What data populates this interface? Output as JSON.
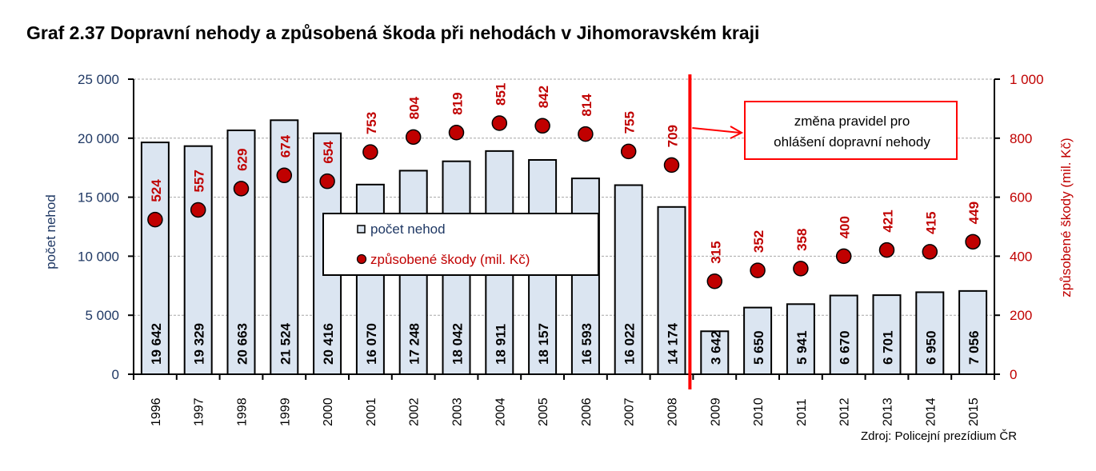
{
  "title": "Graf 2.37 Dopravní nehody a způsobená škoda při nehodách v Jihomoravském kraji",
  "source": "Zdroj:  Policejní prezídium ČR",
  "colors": {
    "bar_fill": "#dbe5f1",
    "bar_stroke": "#000000",
    "dot_fill": "#c00000",
    "dot_label": "#c00000",
    "left_axis_text": "#1f3864",
    "right_axis_text": "#c00000",
    "change_line": "#ff0000",
    "grid": "#a6a6a6"
  },
  "chart_data": {
    "type": "bar+scatter",
    "categories": [
      "1996",
      "1997",
      "1998",
      "1999",
      "2000",
      "2001",
      "2002",
      "2003",
      "2004",
      "2005",
      "2006",
      "2007",
      "2008",
      "2009",
      "2010",
      "2011",
      "2012",
      "2013",
      "2014",
      "2015"
    ],
    "series": [
      {
        "name": "počet nehod",
        "type": "bar",
        "axis": "left",
        "values": [
          19642,
          19329,
          20663,
          21524,
          20416,
          16070,
          17248,
          18042,
          18911,
          18157,
          16593,
          16022,
          14174,
          3642,
          5650,
          5941,
          6670,
          6701,
          6950,
          7056
        ],
        "labels": [
          "19 642",
          "19 329",
          "20 663",
          "21 524",
          "20 416",
          "16 070",
          "17 248",
          "18 042",
          "18 911",
          "18 157",
          "16 593",
          "16 022",
          "14 174",
          "3 642",
          "5 650",
          "5 941",
          "6 670",
          "6 701",
          "6 950",
          "7 056"
        ]
      },
      {
        "name": "způsobené škody (mil. Kč)",
        "type": "scatter",
        "axis": "right",
        "values": [
          524,
          557,
          629,
          674,
          654,
          753,
          804,
          819,
          851,
          842,
          814,
          755,
          709,
          315,
          352,
          358,
          400,
          421,
          415,
          449
        ],
        "labels": [
          "524",
          "557",
          "629",
          "674",
          "654",
          "753",
          "804",
          "819",
          "851",
          "842",
          "814",
          "755",
          "709",
          "315",
          "352",
          "358",
          "400",
          "421",
          "415",
          "449"
        ]
      }
    ],
    "ylabel": "počet nehod",
    "y2label": "způsobené škody (mil. Kč)",
    "ylim": [
      0,
      25000
    ],
    "y2lim": [
      0,
      1000
    ],
    "yticks": [
      "0",
      "5 000",
      "10 000",
      "15 000",
      "20 000",
      "25 000"
    ],
    "y2ticks": [
      "0",
      "200",
      "400",
      "600",
      "800",
      "1 000"
    ],
    "grid": true,
    "legend_position": "center-left",
    "annotation": {
      "text_line1": "změna  pravidel pro",
      "text_line2": "ohlášení dopravní nehody"
    }
  }
}
